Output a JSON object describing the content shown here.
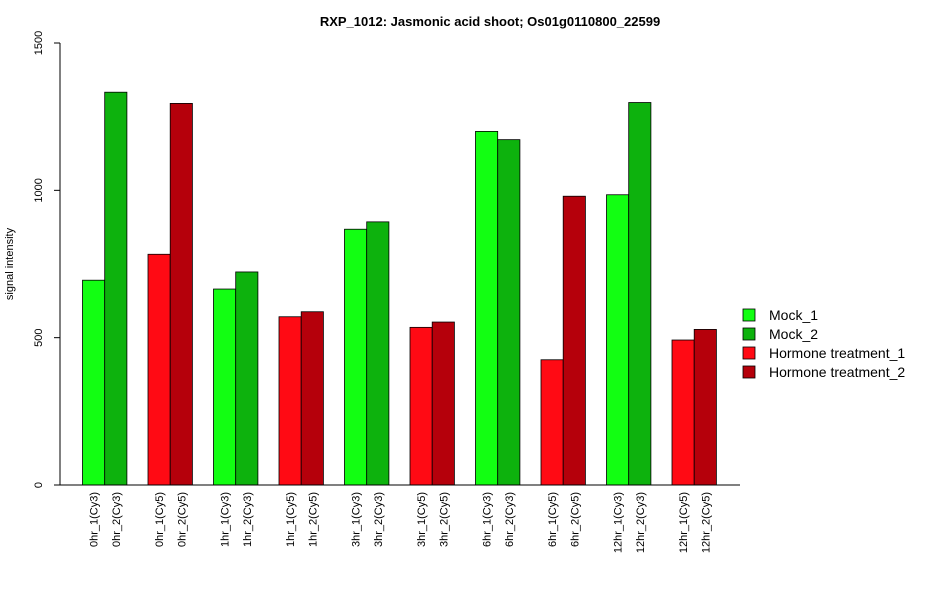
{
  "chart_data": {
    "type": "bar",
    "title": "RXP_1012: Jasmonic acid shoot; Os01g0110800_22599",
    "ylabel": "signal intensity",
    "xlabel": "",
    "ylim": [
      0,
      1500
    ],
    "yticks": [
      0,
      500,
      1000,
      1500
    ],
    "grid": false,
    "legend_position": "right",
    "categories": [
      "0hr_1(Cy3)",
      "0hr_2(Cy3)",
      "0hr_1(Cy5)",
      "0hr_2(Cy5)",
      "1hr_1(Cy3)",
      "1hr_2(Cy3)",
      "1hr_1(Cy5)",
      "1hr_2(Cy5)",
      "3hr_1(Cy3)",
      "3hr_2(Cy3)",
      "3hr_1(Cy5)",
      "3hr_2(Cy5)",
      "6hr_1(Cy3)",
      "6hr_2(Cy3)",
      "6hr_1(Cy5)",
      "6hr_2(Cy5)",
      "12hr_1(Cy3)",
      "12hr_2(Cy3)",
      "12hr_1(Cy5)",
      "12hr_2(Cy5)"
    ],
    "values": [
      695,
      1333,
      783,
      1295,
      665,
      723,
      571,
      588,
      868,
      893,
      535,
      553,
      1200,
      1172,
      425,
      980,
      985,
      1298,
      492,
      528
    ],
    "bar_series": [
      0,
      1,
      2,
      3,
      0,
      1,
      2,
      3,
      0,
      1,
      2,
      3,
      0,
      1,
      2,
      3,
      0,
      1,
      2,
      3
    ],
    "series": [
      {
        "name": "Mock_1",
        "color": "#12ff12"
      },
      {
        "name": "Mock_2",
        "color": "#0db20d"
      },
      {
        "name": "Hormone treatment_1",
        "color": "#ff0a14"
      },
      {
        "name": "Hormone treatment_2",
        "color": "#b5000b"
      }
    ]
  }
}
